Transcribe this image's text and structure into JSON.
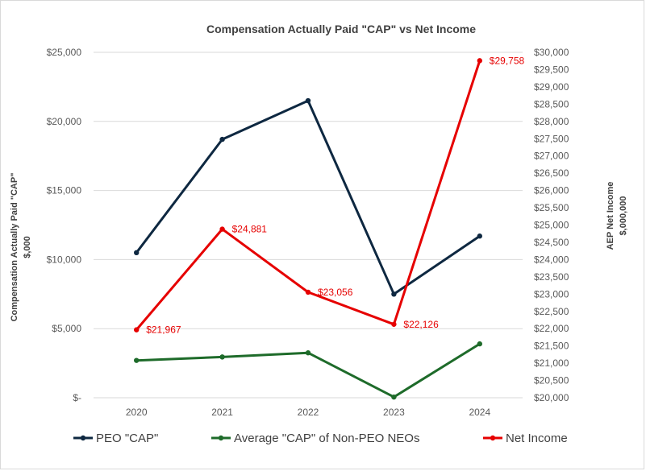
{
  "chart_data": {
    "type": "line",
    "title": "Compensation Actually Paid \"CAP\" vs Net Income",
    "categories": [
      "2020",
      "2021",
      "2022",
      "2023",
      "2024"
    ],
    "left_axis": {
      "title_line1": "Compensation Actually Paid \"CAP\"",
      "title_line2": "$,000",
      "range": [
        0,
        25000
      ],
      "ticks": [
        {
          "value": 0,
          "label": "$-"
        },
        {
          "value": 5000,
          "label": "$5,000"
        },
        {
          "value": 10000,
          "label": "$10,000"
        },
        {
          "value": 15000,
          "label": "$15,000"
        },
        {
          "value": 20000,
          "label": "$20,000"
        },
        {
          "value": 25000,
          "label": "$25,000"
        }
      ]
    },
    "right_axis": {
      "title_line1": "AEP Net Income",
      "title_line2": "$,000,000",
      "range": [
        20000,
        30000
      ],
      "ticks": [
        {
          "value": 20000,
          "label": "$20,000"
        },
        {
          "value": 20500,
          "label": "$20,500"
        },
        {
          "value": 21000,
          "label": "$21,000"
        },
        {
          "value": 21500,
          "label": "$21,500"
        },
        {
          "value": 22000,
          "label": "$22,000"
        },
        {
          "value": 22500,
          "label": "$22,500"
        },
        {
          "value": 23000,
          "label": "$23,000"
        },
        {
          "value": 23500,
          "label": "$23,500"
        },
        {
          "value": 24000,
          "label": "$24,000"
        },
        {
          "value": 24500,
          "label": "$24,500"
        },
        {
          "value": 25000,
          "label": "$25,000"
        },
        {
          "value": 25500,
          "label": "$25,500"
        },
        {
          "value": 26000,
          "label": "$26,000"
        },
        {
          "value": 26500,
          "label": "$26,500"
        },
        {
          "value": 27000,
          "label": "$27,000"
        },
        {
          "value": 27500,
          "label": "$27,500"
        },
        {
          "value": 28000,
          "label": "$28,000"
        },
        {
          "value": 28500,
          "label": "$28,500"
        },
        {
          "value": 29000,
          "label": "$29,000"
        },
        {
          "value": 29500,
          "label": "$29,500"
        },
        {
          "value": 30000,
          "label": "$30,000"
        }
      ]
    },
    "series": [
      {
        "key": "peo",
        "name": "PEO \"CAP\"",
        "axis": "left",
        "color": "#0e2841",
        "values": [
          10500,
          18700,
          21500,
          7500,
          11700
        ]
      },
      {
        "key": "neo",
        "name": "Average \"CAP\" of Non-PEO NEOs",
        "axis": "left",
        "color": "#1e6b2a",
        "values": [
          2700,
          2950,
          3250,
          50,
          3900
        ]
      },
      {
        "key": "ni",
        "name": "Net Income",
        "axis": "right",
        "color": "#e60000",
        "values": [
          21967,
          24881,
          23056,
          22126,
          29758
        ],
        "data_labels": [
          "$21,967",
          "$24,881",
          "$23,056",
          "$22,126",
          "$29,758"
        ]
      }
    ],
    "grid": true,
    "legend_position": "bottom"
  }
}
